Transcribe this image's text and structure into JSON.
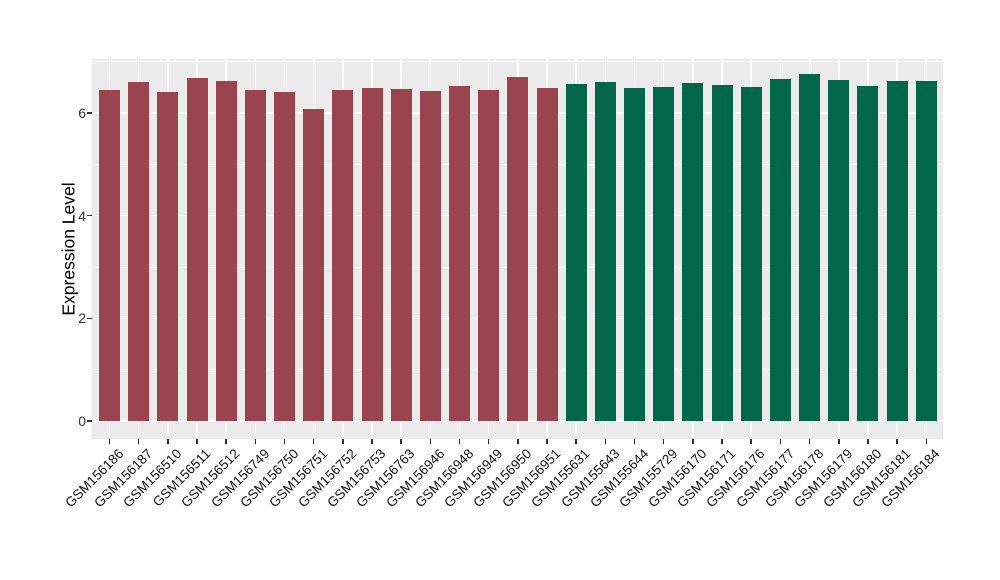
{
  "chart_data": {
    "type": "bar",
    "title": "",
    "xlabel": "",
    "ylabel": "Expression Level",
    "ylim": [
      0,
      7.05
    ],
    "yticks": [
      0,
      2,
      4,
      6
    ],
    "yticks_minor": [
      1,
      3,
      5,
      7
    ],
    "grid": "white major and minor gridlines on gray panel",
    "legend_position": "none",
    "x_tick_rotation_deg": 45,
    "categories": [
      "GSM156186",
      "GSM156187",
      "GSM156510",
      "GSM156511",
      "GSM156512",
      "GSM156749",
      "GSM156750",
      "GSM156751",
      "GSM156752",
      "GSM156753",
      "GSM156763",
      "GSM156946",
      "GSM156948",
      "GSM156949",
      "GSM156950",
      "GSM156951",
      "GSM155631",
      "GSM155643",
      "GSM155644",
      "GSM155729",
      "GSM156170",
      "GSM156171",
      "GSM156176",
      "GSM156177",
      "GSM156178",
      "GSM156179",
      "GSM156180",
      "GSM156181",
      "GSM156184"
    ],
    "values": [
      6.45,
      6.61,
      6.41,
      6.68,
      6.62,
      6.45,
      6.41,
      6.08,
      6.44,
      6.49,
      6.47,
      6.43,
      6.53,
      6.45,
      6.7,
      6.49,
      6.56,
      6.6,
      6.48,
      6.5,
      6.58,
      6.55,
      6.51,
      6.66,
      6.76,
      6.64,
      6.53,
      6.62,
      6.62
    ],
    "colors": [
      "#9A4450",
      "#9A4450",
      "#9A4450",
      "#9A4450",
      "#9A4450",
      "#9A4450",
      "#9A4450",
      "#9A4450",
      "#9A4450",
      "#9A4450",
      "#9A4450",
      "#9A4450",
      "#9A4450",
      "#9A4450",
      "#9A4450",
      "#9A4450",
      "#026649",
      "#026649",
      "#026649",
      "#026649",
      "#026649",
      "#026649",
      "#026649",
      "#026649",
      "#026649",
      "#026649",
      "#026649",
      "#026649",
      "#026649"
    ]
  },
  "style": {
    "figure_bg": "#FFFFFF",
    "panel_bg": "#EBEBEB",
    "grid_color": "#FFFFFF",
    "tick_color": "#333333",
    "axis_text_color": "#333333",
    "x_label_color": "#111111",
    "axis_title_color": "#000000",
    "bar_color_left_group": "#9A4450",
    "bar_color_right_group": "#026649"
  }
}
